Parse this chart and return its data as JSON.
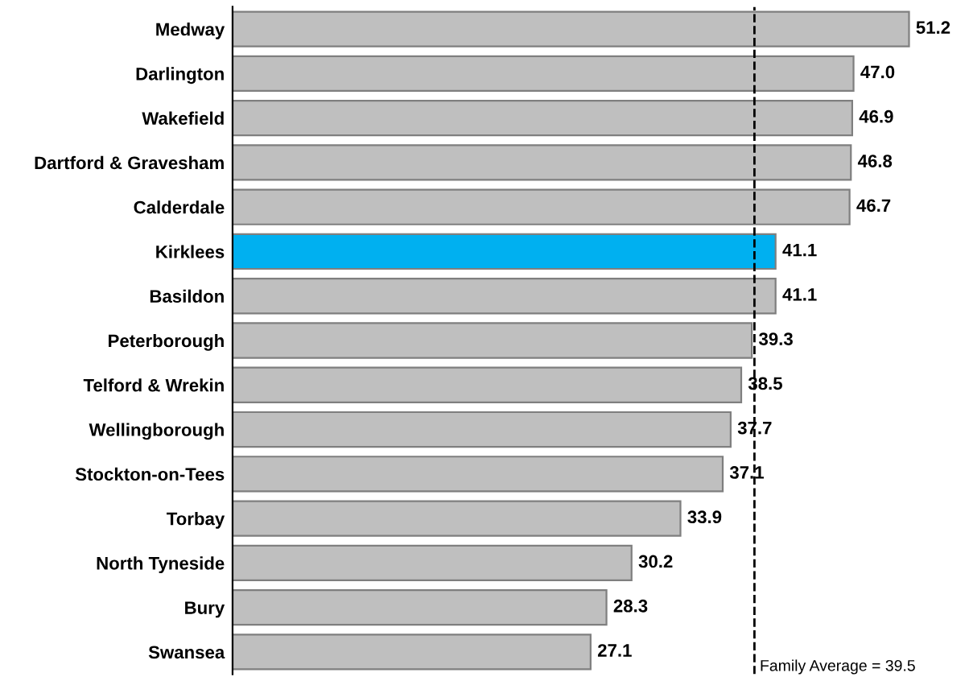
{
  "chart_data": {
    "type": "bar",
    "orientation": "horizontal",
    "categories": [
      "Medway",
      "Darlington",
      "Wakefield",
      "Dartford & Gravesham",
      "Calderdale",
      "Kirklees",
      "Basildon",
      "Peterborough",
      "Telford & Wrekin",
      "Wellingborough",
      "Stockton-on-Tees",
      "Torbay",
      "North Tyneside",
      "Bury",
      "Swansea"
    ],
    "values": [
      51.2,
      47.0,
      46.9,
      46.8,
      46.7,
      41.1,
      41.1,
      39.3,
      38.5,
      37.7,
      37.1,
      33.9,
      30.2,
      28.3,
      27.1
    ],
    "value_labels": [
      "51.2",
      "47.0",
      "46.9",
      "46.8",
      "46.7",
      "41.1",
      "41.1",
      "39.3",
      "38.5",
      "37.7",
      "37.1",
      "33.9",
      "30.2",
      "28.3",
      "27.1"
    ],
    "colors": [
      "#bfbfbf",
      "#bfbfbf",
      "#bfbfbf",
      "#bfbfbf",
      "#bfbfbf",
      "#00b0f0",
      "#bfbfbf",
      "#bfbfbf",
      "#bfbfbf",
      "#bfbfbf",
      "#bfbfbf",
      "#bfbfbf",
      "#bfbfbf",
      "#bfbfbf",
      "#bfbfbf"
    ],
    "tick_labels": "y",
    "grid": false,
    "ref_lines": [
      {
        "axis": "x",
        "value": 39.5,
        "label": "Family Average = 39.5",
        "color": "#000000",
        "line_style": "dashed"
      }
    ]
  }
}
